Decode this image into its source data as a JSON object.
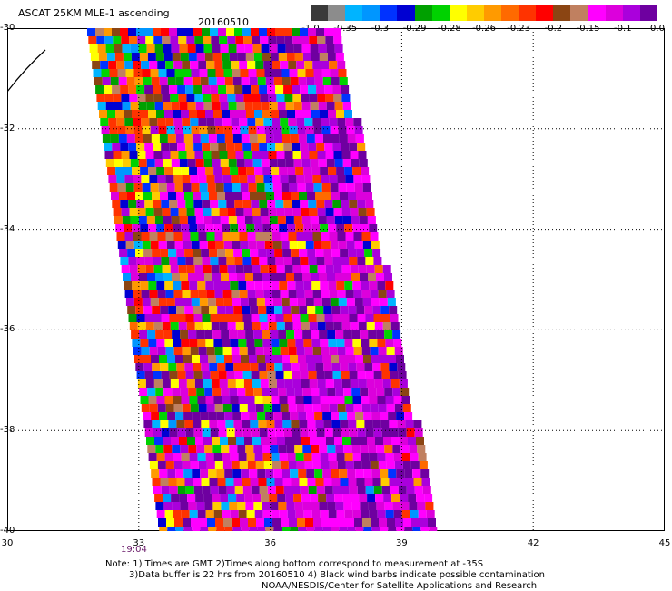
{
  "header": {
    "title": "ASCAT 25KM MLE-1 ascending",
    "date": "20160510"
  },
  "colorbar": {
    "colors": [
      "#3a3a3a",
      "#8c8c8c",
      "#00b4ff",
      "#0096ff",
      "#0032ff",
      "#0000d2",
      "#00a000",
      "#00d200",
      "#ffff00",
      "#ffcc00",
      "#ff9a00",
      "#ff6a00",
      "#ff3300",
      "#ff0000",
      "#8b4513",
      "#c08060",
      "#ff00ff",
      "#dc00dc",
      "#aa00dc",
      "#6e00a0"
    ],
    "labels": [
      "-1.0",
      "-0.35",
      "-0.3",
      "-0.29",
      "-0.28",
      "-0.26",
      "-0.23",
      "-0.2",
      "-0.15",
      "-0.1",
      "0.0"
    ]
  },
  "map": {
    "y_ticks": [
      "-30",
      "-32",
      "-34",
      "-36",
      "-38",
      "-40"
    ],
    "x_ticks": [
      "30",
      "33",
      "36",
      "39",
      "42",
      "45"
    ],
    "lat_range": [
      -40,
      -30
    ],
    "lon_range": [
      30,
      45
    ],
    "grid": "dotted",
    "pass_time": "19:04"
  },
  "notes": {
    "line1": "Note: 1) Times are GMT 2)Times along bottom correspond to measurement at -35S",
    "line2": "3)Data buffer is 22 hrs from 20160510 4) Black wind barbs indicate possible contamination",
    "line3": "NOAA/NESDIS/Center for Satellite Applications and Research"
  }
}
